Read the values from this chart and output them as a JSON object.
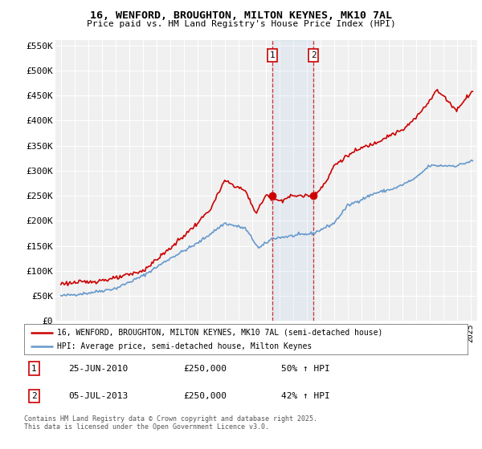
{
  "title_line1": "16, WENFORD, BROUGHTON, MILTON KEYNES, MK10 7AL",
  "title_line2": "Price paid vs. HM Land Registry's House Price Index (HPI)",
  "ylim": [
    0,
    550000
  ],
  "yticks": [
    0,
    50000,
    100000,
    150000,
    200000,
    250000,
    300000,
    350000,
    400000,
    450000,
    500000,
    550000
  ],
  "ytick_labels": [
    "£0",
    "£50K",
    "£100K",
    "£150K",
    "£200K",
    "£250K",
    "£300K",
    "£350K",
    "£400K",
    "£450K",
    "£500K",
    "£550K"
  ],
  "property_color": "#cc0000",
  "hpi_color": "#6699cc",
  "background_color": "#f0f0f0",
  "legend_property": "16, WENFORD, BROUGHTON, MILTON KEYNES, MK10 7AL (semi-detached house)",
  "legend_hpi": "HPI: Average price, semi-detached house, Milton Keynes",
  "footer": "Contains HM Land Registry data © Crown copyright and database right 2025.\nThis data is licensed under the Open Government Licence v3.0.",
  "t1_label": "1",
  "t1_date_str": "25-JUN-2010",
  "t1_price_str": "£250,000",
  "t1_hpi_str": "50% ↑ HPI",
  "t1_year": 2010.4795,
  "t2_label": "2",
  "t2_date_str": "05-JUL-2013",
  "t2_price_str": "£250,000",
  "t2_hpi_str": "42% ↑ HPI",
  "t2_year": 2013.5068,
  "hpi_keypoints_year": [
    1995,
    1997,
    1999,
    2001,
    2003,
    2005,
    2007,
    2008.5,
    2009.5,
    2010.5,
    2012,
    2013.5,
    2015,
    2016,
    2018,
    2019.5,
    2021,
    2022,
    2023,
    2024,
    2025.2
  ],
  "hpi_keypoints_val": [
    50000,
    56000,
    65000,
    90000,
    125000,
    155000,
    195000,
    185000,
    145000,
    165000,
    170000,
    175000,
    195000,
    230000,
    255000,
    265000,
    285000,
    310000,
    310000,
    310000,
    320000
  ],
  "prop_keypoints_year": [
    1995,
    1997,
    1999,
    2001,
    2003,
    2005,
    2006,
    2007,
    2008.5,
    2009.3,
    2010.0,
    2010.5,
    2011,
    2012,
    2013.5,
    2014.5,
    2015,
    2016,
    2017,
    2018,
    2019,
    2020,
    2021,
    2022,
    2022.5,
    2023,
    2024,
    2024.5,
    2025.2
  ],
  "prop_keypoints_val": [
    75000,
    78000,
    85000,
    100000,
    145000,
    195000,
    225000,
    280000,
    260000,
    215000,
    250000,
    245000,
    240000,
    250000,
    250000,
    280000,
    310000,
    330000,
    345000,
    355000,
    370000,
    380000,
    405000,
    440000,
    460000,
    450000,
    420000,
    440000,
    460000
  ]
}
